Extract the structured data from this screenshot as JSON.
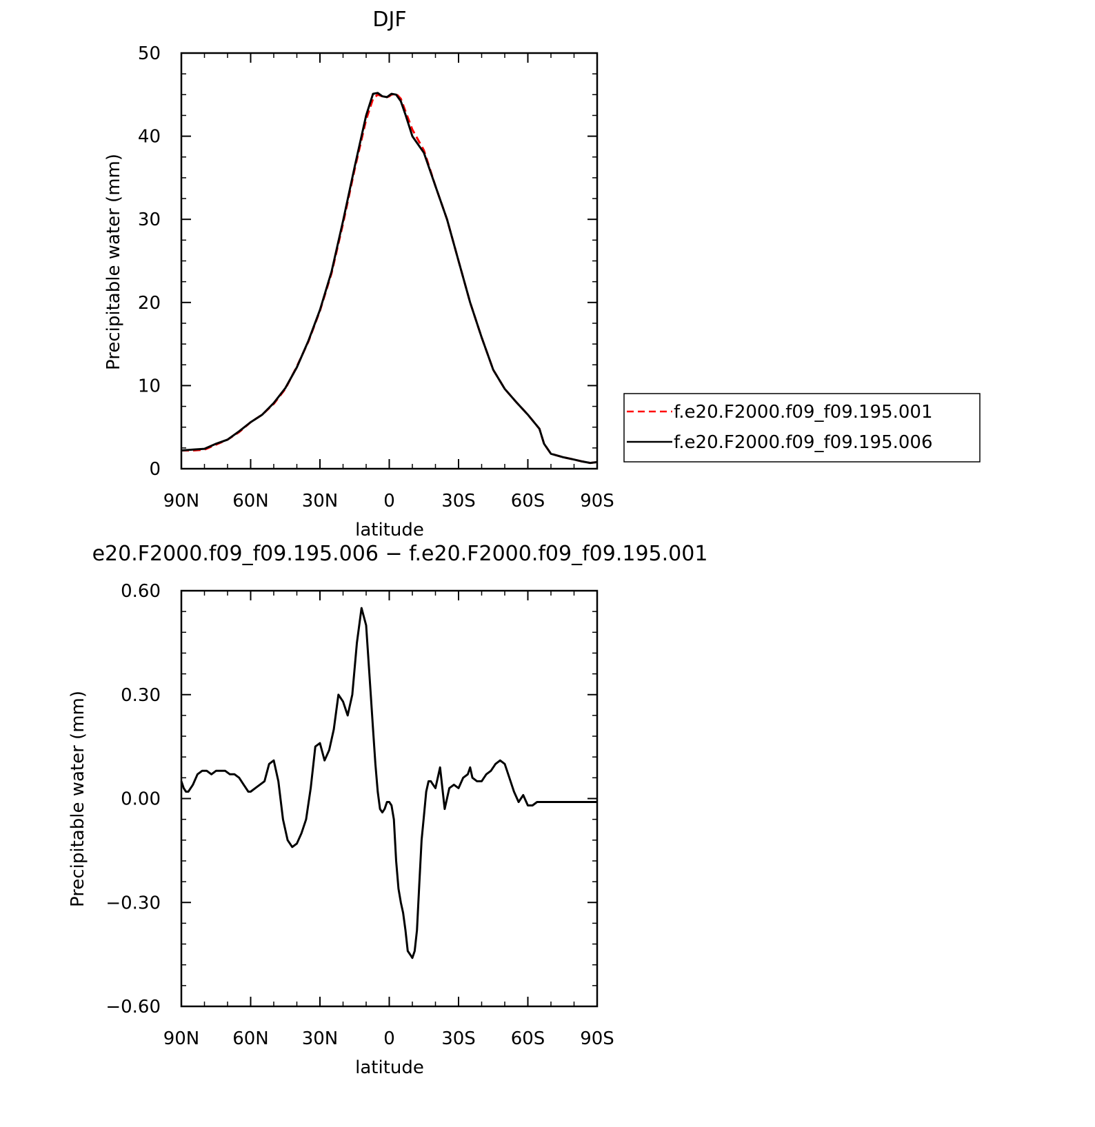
{
  "chart_data": [
    {
      "type": "line",
      "title": "DJF",
      "xlabel": "latitude",
      "ylabel": "Precipitable water (mm)",
      "xlim": [
        90,
        -90
      ],
      "ylim": [
        0,
        50
      ],
      "x_ticks": [
        {
          "value": 90,
          "label": "90N"
        },
        {
          "value": 60,
          "label": "60N"
        },
        {
          "value": 30,
          "label": "30N"
        },
        {
          "value": 0,
          "label": "0"
        },
        {
          "value": -30,
          "label": "30S"
        },
        {
          "value": -60,
          "label": "60S"
        },
        {
          "value": -90,
          "label": "90S"
        }
      ],
      "y_ticks": [
        {
          "value": 0,
          "label": "0"
        },
        {
          "value": 10,
          "label": "10"
        },
        {
          "value": 20,
          "label": "20"
        },
        {
          "value": 30,
          "label": "30"
        },
        {
          "value": 40,
          "label": "40"
        },
        {
          "value": 50,
          "label": "50"
        }
      ],
      "legend": "right",
      "series": [
        {
          "name": "f.e20.F2000.f09_f09.195.001",
          "color": "#ff0000",
          "style": "dashed",
          "x": [
            90,
            85,
            80,
            75,
            70,
            65,
            60,
            55,
            50,
            45,
            40,
            35,
            30,
            25,
            20,
            15,
            10,
            7,
            5,
            3,
            1,
            0,
            -1,
            -3,
            -5,
            -7,
            -10,
            -15,
            -20,
            -25,
            -30,
            -35,
            -40,
            -45,
            -50,
            -55,
            -60,
            -65,
            -67,
            -70,
            -75,
            -80,
            -83,
            -85,
            -87,
            -90
          ],
          "y": [
            2.2,
            2.2,
            2.3,
            2.9,
            3.5,
            4.4,
            5.6,
            6.5,
            7.8,
            9.6,
            12.3,
            15.3,
            19.0,
            23.5,
            29.5,
            36.0,
            42.0,
            44.5,
            45.0,
            44.8,
            44.7,
            44.8,
            45.0,
            45.1,
            44.5,
            43.0,
            40.8,
            38.3,
            34.0,
            30.0,
            25.0,
            20.0,
            15.8,
            11.9,
            9.6,
            8.0,
            6.5,
            4.8,
            3.0,
            1.8,
            1.4,
            1.1,
            0.9,
            0.8,
            0.7,
            0.8
          ]
        },
        {
          "name": "f.e20.F2000.f09_f09.195.006",
          "color": "#000000",
          "style": "solid",
          "x": [
            90,
            85,
            80,
            75,
            70,
            65,
            60,
            55,
            50,
            45,
            40,
            35,
            30,
            25,
            20,
            15,
            10,
            7,
            5,
            3,
            1,
            0,
            -1,
            -3,
            -5,
            -7,
            -10,
            -15,
            -20,
            -25,
            -30,
            -35,
            -40,
            -45,
            -50,
            -55,
            -60,
            -65,
            -67,
            -70,
            -75,
            -80,
            -83,
            -85,
            -87,
            -90
          ],
          "y": [
            2.2,
            2.3,
            2.4,
            3.0,
            3.5,
            4.5,
            5.6,
            6.5,
            7.9,
            9.7,
            12.2,
            15.4,
            19.1,
            23.7,
            29.8,
            36.3,
            42.5,
            45.1,
            45.2,
            44.8,
            44.7,
            44.9,
            45.1,
            45.0,
            44.2,
            42.6,
            40.0,
            38.0,
            34.0,
            30.0,
            25.0,
            20.0,
            15.8,
            11.9,
            9.6,
            8.0,
            6.5,
            4.8,
            3.0,
            1.8,
            1.4,
            1.1,
            0.9,
            0.8,
            0.7,
            0.8
          ]
        }
      ]
    },
    {
      "type": "line",
      "title": "e20.F2000.f09_f09.195.006 − f.e20.F2000.f09_f09.195.001",
      "xlabel": "latitude",
      "ylabel": "Precipitable water (mm)",
      "xlim": [
        90,
        -90
      ],
      "ylim": [
        -0.6,
        0.6
      ],
      "x_ticks": [
        {
          "value": 90,
          "label": "90N"
        },
        {
          "value": 60,
          "label": "60N"
        },
        {
          "value": 30,
          "label": "30N"
        },
        {
          "value": 0,
          "label": "0"
        },
        {
          "value": -30,
          "label": "30S"
        },
        {
          "value": -60,
          "label": "60S"
        },
        {
          "value": -90,
          "label": "90S"
        }
      ],
      "y_ticks": [
        {
          "value": -0.6,
          "label": "−0.60"
        },
        {
          "value": -0.3,
          "label": "−0.30"
        },
        {
          "value": 0.0,
          "label": "0.00"
        },
        {
          "value": 0.3,
          "label": "0.30"
        },
        {
          "value": 0.6,
          "label": "0.60"
        }
      ],
      "series": [
        {
          "color": "#000000",
          "style": "solid",
          "x": [
            90,
            89,
            88,
            87,
            85,
            83,
            81,
            79,
            77,
            75,
            73,
            71,
            69,
            67,
            65,
            63,
            61,
            60,
            58,
            56,
            54,
            52,
            50,
            48,
            46,
            44,
            42,
            40,
            38,
            36,
            34,
            32,
            30,
            28,
            26,
            24,
            22,
            20,
            18,
            16,
            14,
            12,
            10,
            8,
            7,
            6,
            5,
            4,
            3,
            2,
            1,
            0,
            -1,
            -2,
            -3,
            -4,
            -5,
            -6,
            -7,
            -8,
            -9,
            -10,
            -11,
            -12,
            -13,
            -14,
            -15,
            -16,
            -17,
            -18,
            -19,
            -20,
            -22,
            -24,
            -26,
            -28,
            -30,
            -32,
            -34,
            -35,
            -36,
            -38,
            -40,
            -42,
            -44,
            -46,
            -48,
            -50,
            -52,
            -54,
            -56,
            -58,
            -60,
            -62,
            -64,
            -66,
            -68,
            -70,
            -72,
            -74,
            -76,
            -78,
            -80,
            -82,
            -84,
            -86,
            -88,
            -90
          ],
          "y": [
            0.05,
            0.03,
            0.02,
            0.02,
            0.04,
            0.07,
            0.08,
            0.08,
            0.07,
            0.08,
            0.08,
            0.08,
            0.07,
            0.07,
            0.06,
            0.04,
            0.02,
            0.02,
            0.03,
            0.04,
            0.05,
            0.1,
            0.11,
            0.05,
            -0.06,
            -0.12,
            -0.14,
            -0.13,
            -0.1,
            -0.06,
            0.03,
            0.15,
            0.16,
            0.11,
            0.14,
            0.2,
            0.3,
            0.28,
            0.24,
            0.3,
            0.45,
            0.55,
            0.5,
            0.3,
            0.2,
            0.1,
            0.02,
            -0.03,
            -0.04,
            -0.03,
            -0.01,
            -0.01,
            -0.02,
            -0.06,
            -0.18,
            -0.26,
            -0.3,
            -0.33,
            -0.38,
            -0.44,
            -0.45,
            -0.46,
            -0.44,
            -0.38,
            -0.25,
            -0.12,
            -0.05,
            0.02,
            0.05,
            0.05,
            0.04,
            0.03,
            0.09,
            -0.03,
            0.03,
            0.04,
            0.03,
            0.06,
            0.07,
            0.09,
            0.06,
            0.05,
            0.05,
            0.07,
            0.08,
            0.1,
            0.11,
            0.1,
            0.06,
            0.02,
            -0.01,
            0.01,
            -0.02,
            -0.02,
            -0.01,
            -0.01,
            -0.01,
            -0.01,
            -0.01,
            -0.01,
            -0.01,
            -0.01,
            -0.01,
            -0.01,
            -0.01,
            -0.01,
            -0.01,
            -0.01
          ]
        }
      ]
    }
  ]
}
